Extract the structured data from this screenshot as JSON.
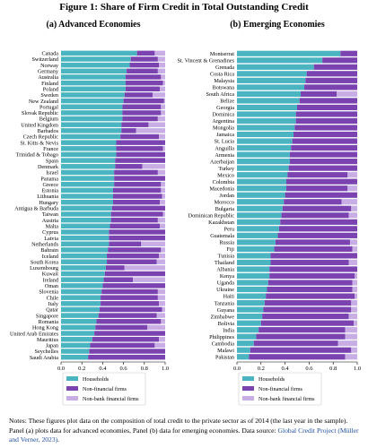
{
  "figure_title": "Figure 1: Share of Firm Credit in Total Outstanding Credit",
  "colors": {
    "households": "#4ab5c0",
    "nonfinancial": "#7b43b0",
    "nonbank": "#c9aee6"
  },
  "notes": {
    "text": "Notes: These figures plot data on the composition of total credit to the private sector as of 2014 (the last year in the sample). Panel (a) plots data for advanced economies, Panel (b) data for emerging economies. Data source: ",
    "citation": "Global Credit Project (Müller and Verner, 2023)",
    "end": "."
  },
  "chart_data": [
    {
      "type": "bar",
      "orientation": "horizontal",
      "stacked": true,
      "title": "(a) Advanced Economies",
      "xlim": [
        0,
        1
      ],
      "xticks": [
        "0.0",
        "0.2",
        "0.4",
        "0.6",
        "0.8",
        "1.0"
      ],
      "legend": [
        "Households",
        "Non-financial firms",
        "Non-bank financial firms"
      ],
      "legend_position": "bottom",
      "categories": [
        "Canada",
        "Switzerland",
        "Norway",
        "Germany",
        "Australia",
        "Finland",
        "Poland",
        "Sweden",
        "New Zealand",
        "Portugal",
        "Slovak Republic",
        "Belgium",
        "United Kingdom",
        "Barbados",
        "Czech Republic",
        "St. Kitts & Nevis",
        "France",
        "Trinidad & Tobago",
        "Spain",
        "Denmark",
        "Israel",
        "Panama",
        "Greece",
        "Estonia",
        "Lithuania",
        "Hungary",
        "Antigua & Barbuda",
        "Taiwan",
        "Austria",
        "Malta",
        "Cyprus",
        "Latvia",
        "Netherlands",
        "Bahrain",
        "Iceland",
        "South Korea",
        "Luxembourg",
        "Kuwait",
        "Ireland",
        "Oman",
        "Slovenia",
        "Chile",
        "Italy",
        "Qatar",
        "Singapore",
        "Romania",
        "Hong Kong",
        "United Arab Emirates",
        "Mauritius",
        "Japan",
        "Seychelles",
        "Saudi Arabia"
      ],
      "series": [
        {
          "name": "Households",
          "values": [
            0.73,
            0.67,
            0.66,
            0.63,
            0.62,
            0.62,
            0.62,
            0.61,
            0.6,
            0.59,
            0.59,
            0.59,
            0.58,
            0.58,
            0.57,
            0.53,
            0.53,
            0.53,
            0.52,
            0.52,
            0.51,
            0.51,
            0.51,
            0.5,
            0.5,
            0.5,
            0.49,
            0.48,
            0.48,
            0.47,
            0.46,
            0.46,
            0.46,
            0.45,
            0.44,
            0.44,
            0.43,
            0.42,
            0.41,
            0.4,
            0.39,
            0.38,
            0.38,
            0.37,
            0.36,
            0.34,
            0.33,
            0.32,
            0.3,
            0.28,
            0.27,
            0.26
          ]
        },
        {
          "name": "Non-financial firms",
          "values": [
            0.17,
            0.26,
            0.28,
            0.3,
            0.34,
            0.36,
            0.33,
            0.27,
            0.39,
            0.37,
            0.37,
            0.34,
            0.26,
            0.14,
            0.37,
            0.47,
            0.45,
            0.47,
            0.48,
            0.26,
            0.42,
            0.49,
            0.45,
            0.46,
            0.47,
            0.45,
            0.51,
            0.5,
            0.45,
            0.48,
            0.54,
            0.54,
            0.31,
            0.51,
            0.5,
            0.48,
            0.18,
            0.58,
            0.28,
            0.6,
            0.54,
            0.55,
            0.56,
            0.6,
            0.56,
            0.62,
            0.5,
            0.68,
            0.64,
            0.62,
            0.73,
            0.74
          ]
        },
        {
          "name": "Non-bank financial firms",
          "values": [
            0.1,
            0.07,
            0.06,
            0.07,
            0.04,
            0.02,
            0.05,
            0.12,
            0.01,
            0.04,
            0.04,
            0.07,
            0.16,
            0.28,
            0.06,
            0.0,
            0.02,
            0.0,
            0.0,
            0.22,
            0.07,
            0.0,
            0.04,
            0.04,
            0.03,
            0.05,
            0.0,
            0.02,
            0.07,
            0.05,
            0.0,
            0.0,
            0.23,
            0.04,
            0.06,
            0.08,
            0.39,
            0.0,
            0.31,
            0.0,
            0.07,
            0.07,
            0.06,
            0.03,
            0.08,
            0.04,
            0.17,
            0.0,
            0.06,
            0.1,
            0.0,
            0.0
          ]
        }
      ]
    },
    {
      "type": "bar",
      "orientation": "horizontal",
      "stacked": true,
      "title": "(b) Emerging Economies",
      "xlim": [
        0,
        1
      ],
      "xticks": [
        "0.0",
        "0.2",
        "0.4",
        "0.6",
        "0.8",
        "1.0"
      ],
      "legend": [
        "Households",
        "Non-financial firms",
        "Non-bank financial firms"
      ],
      "legend_position": "bottom",
      "categories": [
        "Montserrat",
        "St. Vincent & Grenadines",
        "Grenada",
        "Costa Rica",
        "Malaysia",
        "Botswana",
        "South Africa",
        "Belize",
        "Georgia",
        "Dominica",
        "Argentina",
        "Mongolia",
        "Jamaica",
        "St. Lucia",
        "Anguilla",
        "Armenia",
        "Azerbaijan",
        "Turkey",
        "Mexico",
        "Colombia",
        "Macedonia",
        "Jordan",
        "Morocco",
        "Bulgaria",
        "Dominican Republic",
        "Kazakhstan",
        "Peru",
        "Guatemala",
        "Russia",
        "Fiji",
        "Tunisia",
        "Thailand",
        "Albania",
        "Kenya",
        "Uganda",
        "Ukraine",
        "Haiti",
        "Tanzania",
        "Guyana",
        "Zimbabwe",
        "Bolivia",
        "India",
        "Philippines",
        "Cambodia",
        "Malawi",
        "Pakistan"
      ],
      "series": [
        {
          "name": "Households",
          "values": [
            0.86,
            0.71,
            0.64,
            0.58,
            0.57,
            0.56,
            0.53,
            0.52,
            0.5,
            0.49,
            0.49,
            0.48,
            0.47,
            0.46,
            0.45,
            0.44,
            0.44,
            0.43,
            0.42,
            0.41,
            0.41,
            0.4,
            0.39,
            0.38,
            0.37,
            0.36,
            0.35,
            0.34,
            0.32,
            0.31,
            0.28,
            0.28,
            0.27,
            0.27,
            0.26,
            0.25,
            0.24,
            0.23,
            0.22,
            0.21,
            0.2,
            0.18,
            0.16,
            0.14,
            0.11,
            0.1
          ]
        },
        {
          "name": "Non-financial firms",
          "values": [
            0.14,
            0.29,
            0.36,
            0.42,
            0.43,
            0.44,
            0.3,
            0.48,
            0.5,
            0.51,
            0.51,
            0.52,
            0.53,
            0.54,
            0.55,
            0.56,
            0.56,
            0.57,
            0.5,
            0.59,
            0.51,
            0.6,
            0.48,
            0.57,
            0.56,
            0.64,
            0.65,
            0.66,
            0.62,
            0.65,
            0.72,
            0.65,
            0.73,
            0.71,
            0.7,
            0.71,
            0.74,
            0.72,
            0.73,
            0.72,
            0.77,
            0.72,
            0.74,
            0.7,
            0.84,
            0.8
          ]
        },
        {
          "name": "Non-bank financial firms",
          "values": [
            0.0,
            0.0,
            0.0,
            0.0,
            0.0,
            0.0,
            0.17,
            0.0,
            0.0,
            0.0,
            0.0,
            0.0,
            0.0,
            0.0,
            0.0,
            0.0,
            0.0,
            0.0,
            0.08,
            0.0,
            0.08,
            0.0,
            0.13,
            0.05,
            0.07,
            0.0,
            0.0,
            0.0,
            0.06,
            0.04,
            0.0,
            0.07,
            0.0,
            0.02,
            0.04,
            0.04,
            0.02,
            0.05,
            0.05,
            0.07,
            0.03,
            0.1,
            0.1,
            0.16,
            0.05,
            0.1
          ]
        }
      ]
    }
  ]
}
